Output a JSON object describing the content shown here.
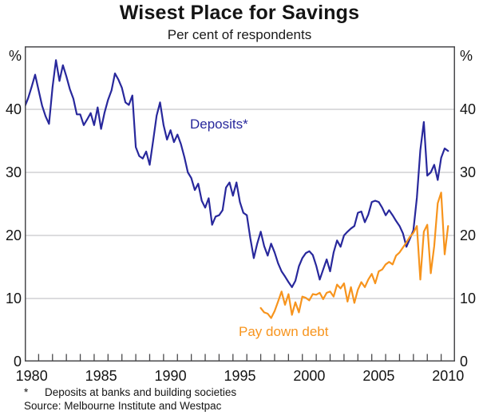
{
  "header": {
    "title": "Wisest Place for Savings",
    "subtitle": "Per cent of respondents"
  },
  "axes": {
    "unit_left": "%",
    "unit_right": "%"
  },
  "footnotes": {
    "asterisk_symbol": "*",
    "asterisk_text": "Deposits at banks and building societies",
    "source": "Source: Melbourne Institute and Westpac"
  },
  "colors": {
    "deposits_blue": "#28289C",
    "pay_down_debt_orange": "#F7941D",
    "gridline_gray": "#C7C8CA",
    "frame_gray": "#4A4A4C"
  },
  "chart_data": {
    "type": "line",
    "title": "Wisest Place for Savings",
    "subtitle": "Per cent of respondents",
    "xlim": [
      1980,
      2011
    ],
    "ylim": [
      0,
      50
    ],
    "grid": true,
    "y_gridlines": [
      10,
      20,
      30,
      40
    ],
    "y_tick_labels": [
      40,
      30,
      20,
      10,
      0
    ],
    "x_tick_labels": [
      1980,
      1985,
      1990,
      1995,
      2000,
      2005,
      2010
    ],
    "x_minor_ticks": {
      "from": 1981,
      "to": 2010,
      "interval": 1
    },
    "legend_position": "inline-labels",
    "series": [
      {
        "name": "Deposits*",
        "color": "#28289C",
        "x_start": 1980.0,
        "x_step": 0.25,
        "values": [
          40.4,
          41.8,
          43.6,
          45.5,
          43.0,
          40.6,
          38.9,
          37.7,
          43.5,
          47.8,
          44.5,
          47.0,
          45.2,
          43.2,
          41.7,
          39.2,
          39.2,
          37.5,
          38.4,
          39.4,
          37.5,
          40.3,
          36.9,
          39.5,
          41.5,
          43.0,
          45.7,
          44.7,
          43.4,
          41.1,
          40.7,
          42.2,
          34.0,
          32.6,
          32.2,
          33.3,
          31.2,
          35.0,
          39.0,
          41.1,
          37.5,
          35.2,
          36.7,
          34.8,
          36.0,
          34.5,
          32.4,
          30.0,
          29.1,
          27.2,
          28.2,
          25.5,
          24.4,
          25.9,
          21.7,
          23.0,
          23.2,
          24.0,
          27.6,
          28.4,
          26.3,
          28.4,
          25.3,
          23.6,
          23.2,
          19.6,
          16.4,
          18.7,
          20.6,
          18.3,
          16.8,
          18.7,
          17.3,
          15.6,
          14.3,
          13.5,
          12.6,
          11.8,
          12.8,
          15.1,
          16.4,
          17.2,
          17.5,
          16.9,
          15.2,
          13.0,
          14.6,
          16.2,
          14.3,
          17.3,
          19.2,
          18.2,
          20.0,
          20.6,
          21.1,
          21.5,
          23.6,
          23.8,
          22.1,
          23.3,
          25.3,
          25.5,
          25.3,
          24.4,
          23.2,
          24.0,
          23.2,
          22.3,
          21.5,
          20.3,
          18.2,
          19.5,
          20.8,
          26.0,
          33.5,
          38.0,
          29.5,
          30.0,
          31.2,
          28.8,
          32.3,
          33.8,
          33.4
        ]
      },
      {
        "name": "Pay down debt",
        "color": "#F7941D",
        "x_start": 1997.0,
        "x_step": 0.25,
        "values": [
          8.5,
          7.8,
          7.6,
          6.9,
          8.0,
          9.5,
          11.1,
          9.0,
          10.7,
          7.4,
          9.4,
          7.8,
          10.3,
          10.1,
          9.7,
          10.7,
          10.6,
          10.9,
          9.9,
          10.9,
          11.1,
          10.3,
          12.2,
          11.6,
          12.4,
          9.5,
          11.8,
          9.3,
          11.4,
          12.6,
          11.8,
          13.0,
          13.9,
          12.4,
          14.3,
          14.6,
          15.4,
          15.8,
          15.4,
          16.8,
          17.3,
          18.1,
          18.9,
          19.8,
          20.4,
          21.5,
          13.0,
          20.6,
          21.7,
          14.0,
          18.3,
          25.1,
          26.8,
          17.0,
          21.5
        ]
      }
    ]
  }
}
